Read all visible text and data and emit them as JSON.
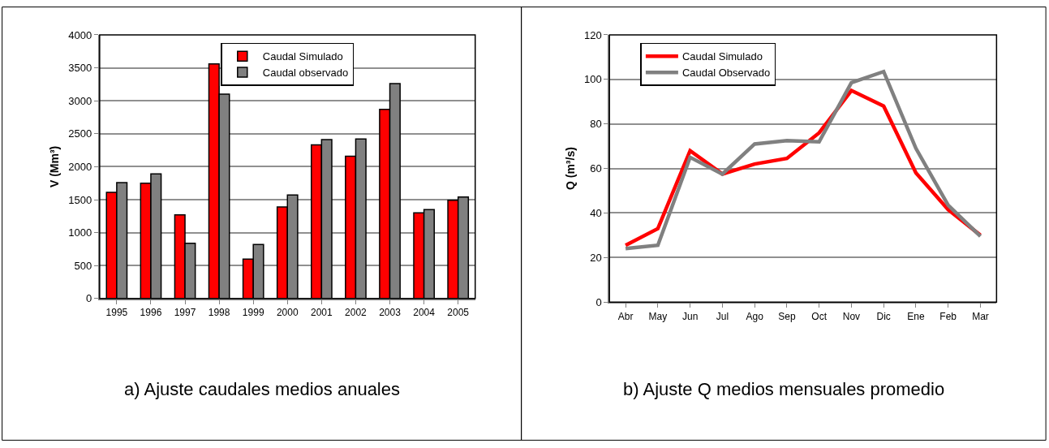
{
  "chart_data": [
    {
      "type": "bar",
      "ylabel": "V (Mm³)",
      "categories": [
        "1995",
        "1996",
        "1997",
        "1998",
        "1999",
        "2000",
        "2001",
        "2002",
        "2003",
        "2004",
        "2005"
      ],
      "series": [
        {
          "name": "Caudal Simulado",
          "color": "#ff0000",
          "values": [
            1610,
            1750,
            1270,
            3560,
            600,
            1390,
            2330,
            2160,
            2870,
            1300,
            1490
          ]
        },
        {
          "name": "Caudal observado",
          "color": "#808080",
          "values": [
            1760,
            1890,
            840,
            3100,
            820,
            1570,
            2410,
            2420,
            3260,
            1350,
            1540
          ]
        }
      ],
      "ylim": [
        0,
        4000
      ],
      "yticks": [
        0,
        500,
        1000,
        1500,
        2000,
        2500,
        3000,
        3500,
        4000
      ],
      "grid": "y",
      "legend": "top",
      "annotations": [
        "a) Ajuste caudales medios anuales"
      ]
    },
    {
      "type": "line",
      "ylabel": "Q (m³/s)",
      "categories": [
        "Abr",
        "May",
        "Jun",
        "Jul",
        "Ago",
        "Sep",
        "Oct",
        "Nov",
        "Dic",
        "Ene",
        "Feb",
        "Mar"
      ],
      "series": [
        {
          "name": "Caudal Simulado",
          "color": "#ff0000",
          "values": [
            25.5,
            33,
            68,
            57.5,
            62,
            64.5,
            76,
            95,
            88,
            58,
            41.5,
            30
          ]
        },
        {
          "name": "Caudal Observado",
          "color": "#808080",
          "values": [
            24,
            25.5,
            65,
            57.5,
            71,
            72.5,
            72,
            98.5,
            103.5,
            69,
            43.5,
            29.5
          ]
        }
      ],
      "ylim": [
        0,
        120
      ],
      "yticks": [
        0,
        20,
        40,
        60,
        80,
        100,
        120
      ],
      "grid": "y",
      "legend": "top left",
      "marker": "none",
      "line_style": "solid",
      "annotations": [
        "b) Ajuste Q medios mensuales promedio"
      ]
    }
  ]
}
